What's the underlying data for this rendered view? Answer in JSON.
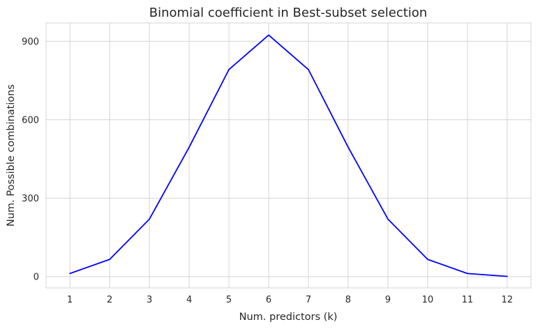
{
  "chart_data": {
    "type": "line",
    "title": "Binomial coefficient in Best-subset selection",
    "xlabel": "Num. predictors (k)",
    "ylabel": "Num. Possible combinations",
    "x": [
      1,
      2,
      3,
      4,
      5,
      6,
      7,
      8,
      9,
      10,
      11,
      12
    ],
    "series": [
      {
        "values": [
          12,
          66,
          220,
          495,
          792,
          924,
          792,
          495,
          220,
          66,
          12,
          1
        ]
      }
    ],
    "xlim": [
      0.4,
      12.6
    ],
    "ylim": [
      -43,
      970
    ],
    "yticks": [
      0,
      300,
      600,
      900
    ],
    "xticks": [
      1,
      2,
      3,
      4,
      5,
      6,
      7,
      8,
      9,
      10,
      11,
      12
    ],
    "grid": true,
    "line_color": "#0000ff"
  }
}
